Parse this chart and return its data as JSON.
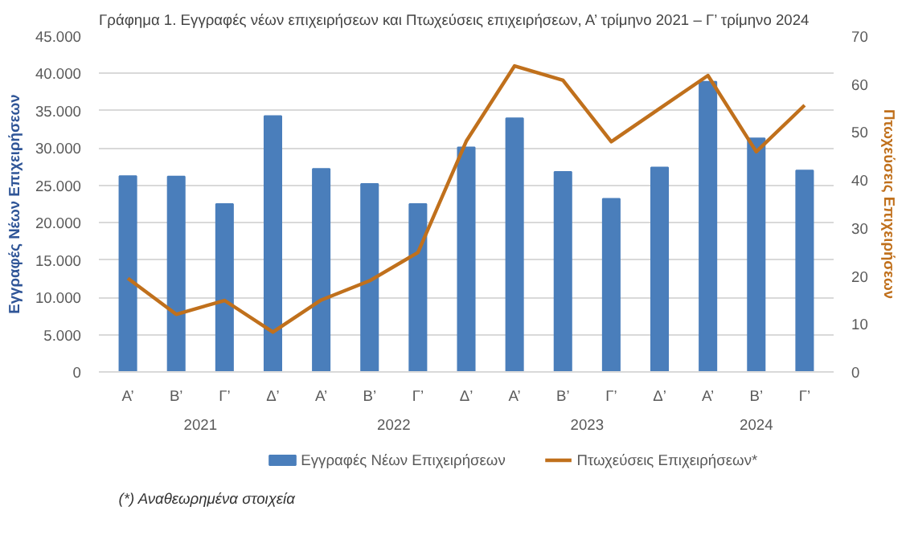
{
  "chart_data": {
    "type": "bar",
    "title": "Γράφημα 1. Εγγραφές νέων επιχειρήσεων και Πτωχεύσεις επιχειρήσεων, Α’ τρίμηνο 2021 – Γ’ τρίμηνο 2024",
    "categories": [
      "Α’",
      "Β’",
      "Γ’",
      "Δ’",
      "Α’",
      "Β’",
      "Γ’",
      "Δ’",
      "Α’",
      "Β’",
      "Γ’",
      "Δ’",
      "Α’",
      "Β’",
      "Γ’"
    ],
    "series": [
      {
        "name": "Εγγραφές Νέων Επιχειρήσεων",
        "color": "#4a7ebb",
        "values": [
          26250,
          26200,
          22500,
          34300,
          27200,
          25200,
          22500,
          30100,
          34000,
          26800,
          23200,
          27400,
          38900,
          31300,
          27000
        ]
      },
      {
        "name": "Πτωχεύσεις Επιχειρήσεων*",
        "type": "line",
        "axis": "y2",
        "color": "#c0701c",
        "values": [
          19.5,
          12.0,
          14.9,
          8.3,
          15.0,
          19.0,
          24.9,
          48.1,
          63.8,
          60.8,
          48.0,
          54.9,
          61.8,
          45.9,
          55.6
        ]
      }
    ],
    "ylabel": "Εγγραφές Νέων Επιχειρήσεων",
    "y2label": "Πτωχεύσεις Επιχειρήσεων",
    "ylim": [
      0,
      45000
    ],
    "yticks": [
      0,
      {
        "value": 5000,
        "label": "5.000"
      },
      {
        "value": 10000,
        "label": "10.000"
      },
      {
        "value": 15000,
        "label": "15.000"
      },
      {
        "value": 20000,
        "label": "20.000"
      },
      {
        "value": 25000,
        "label": "25.000"
      },
      {
        "value": 30000,
        "label": "30.000"
      },
      {
        "value": 35000,
        "label": "35.000"
      },
      {
        "value": 40000,
        "label": "40.000"
      },
      {
        "value": 45000,
        "label": "45.000"
      }
    ],
    "y2lim": [
      0,
      70
    ],
    "y2ticks": [
      0,
      10,
      20,
      30,
      40,
      50,
      60,
      70
    ],
    "grid": "y",
    "legend": "bottom",
    "annotations": [
      "2021",
      "2022",
      "2023",
      "2024",
      "(*) Αναθεωρημένα στοιχεία"
    ]
  }
}
